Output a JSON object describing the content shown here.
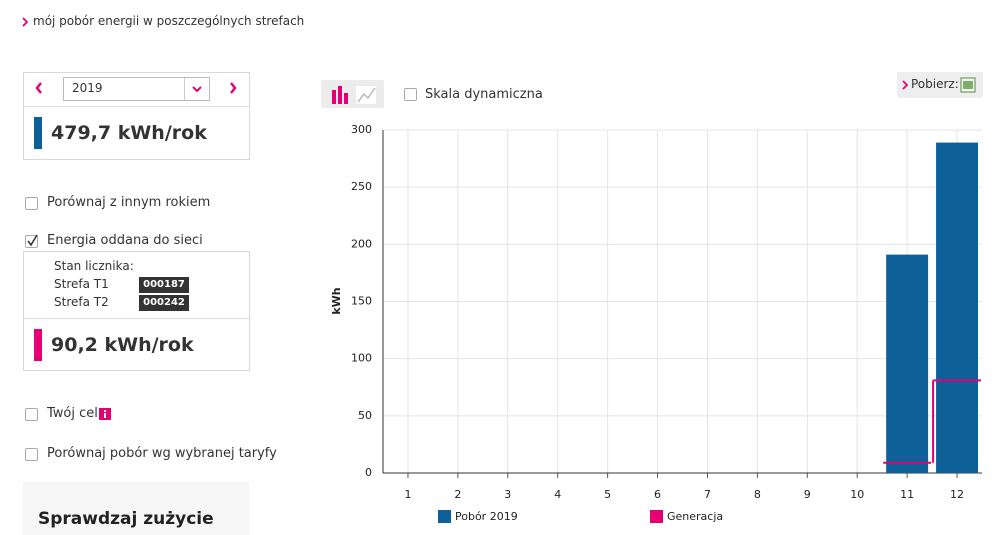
{
  "breadcrumb": "mój pobór energii w poszczególnych strefach",
  "year_select": "2019",
  "annual_consumption": "479,7 kWh/rok",
  "compare_year": "Porównaj z innym rokiem",
  "energy_returned": "Energia oddana do sieci",
  "meter": {
    "title": "Stan licznika:",
    "zones": [
      {
        "label": "Strefa T1",
        "reading": "000187"
      },
      {
        "label": "Strefa T2",
        "reading": "000242"
      }
    ]
  },
  "annual_returned": "90,2 kWh/rok",
  "your_goal": "Twój cel",
  "compare_tariff": "Porównaj pobór wg wybranej taryfy",
  "promo_title": "Sprawdzaj zużycie",
  "dynamic_scale": "Skala dynamiczna",
  "download": "Pobierz:",
  "chart_data": {
    "type": "bar",
    "ylabel": "kWh",
    "categories": [
      "1",
      "2",
      "3",
      "4",
      "5",
      "6",
      "7",
      "8",
      "9",
      "10",
      "11",
      "12"
    ],
    "series": [
      {
        "name": "Pobór 2019",
        "color": "#0e6098",
        "type": "bar",
        "values": [
          null,
          null,
          null,
          null,
          null,
          null,
          null,
          null,
          null,
          null,
          191,
          289
        ]
      },
      {
        "name": "Generacja",
        "color": "#e20074",
        "type": "step",
        "values": [
          null,
          null,
          null,
          null,
          null,
          null,
          null,
          null,
          null,
          null,
          9,
          81
        ]
      }
    ],
    "ylim": [
      0,
      300
    ],
    "yticks": [
      0,
      50,
      100,
      150,
      200,
      250,
      300
    ],
    "grid": true
  }
}
